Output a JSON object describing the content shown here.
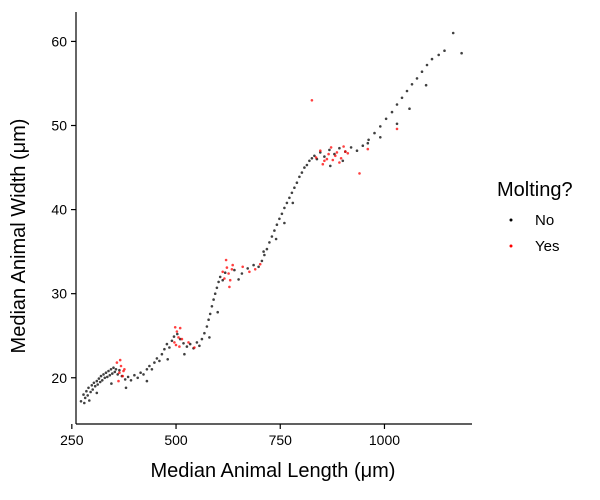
{
  "chart_data": {
    "type": "scatter",
    "xlabel": "Median Animal Length (μm)",
    "ylabel": "Median Animal Width (μm)",
    "xlim": [
      260,
      1210
    ],
    "ylim": [
      14.5,
      63.5
    ],
    "x_ticks": [
      250,
      500,
      750,
      1000
    ],
    "x_tick_labels": [
      "250",
      "500",
      "750",
      "1000"
    ],
    "y_ticks": [
      20,
      30,
      40,
      50,
      60
    ],
    "y_tick_labels": [
      "20",
      "30",
      "40",
      "50",
      "60"
    ],
    "grid": false,
    "legend": {
      "title": "Molting?",
      "placement": "right",
      "entries": [
        {
          "label": "No",
          "color": "#000000"
        },
        {
          "label": "Yes",
          "color": "#ff0000"
        }
      ]
    },
    "series": [
      {
        "name": "No",
        "color": "#000000",
        "points": [
          [
            272,
            17.2
          ],
          [
            278,
            18.0
          ],
          [
            282,
            17.6
          ],
          [
            285,
            18.4
          ],
          [
            288,
            17.9
          ],
          [
            290,
            18.8
          ],
          [
            295,
            18.3
          ],
          [
            298,
            19.1
          ],
          [
            300,
            18.6
          ],
          [
            303,
            19.4
          ],
          [
            306,
            19.0
          ],
          [
            310,
            19.6
          ],
          [
            312,
            19.2
          ],
          [
            315,
            19.9
          ],
          [
            318,
            19.5
          ],
          [
            320,
            20.2
          ],
          [
            323,
            19.7
          ],
          [
            326,
            20.4
          ],
          [
            329,
            20.0
          ],
          [
            332,
            20.6
          ],
          [
            335,
            20.1
          ],
          [
            338,
            20.8
          ],
          [
            341,
            20.3
          ],
          [
            344,
            21.0
          ],
          [
            347,
            20.5
          ],
          [
            350,
            21.2
          ],
          [
            353,
            20.7
          ],
          [
            356,
            21.0
          ],
          [
            360,
            20.4
          ],
          [
            364,
            20.9
          ],
          [
            370,
            20.2
          ],
          [
            378,
            19.8
          ],
          [
            385,
            20.1
          ],
          [
            392,
            19.7
          ],
          [
            400,
            20.3
          ],
          [
            408,
            20.0
          ],
          [
            415,
            20.6
          ],
          [
            422,
            20.4
          ],
          [
            430,
            21.0
          ],
          [
            436,
            21.4
          ],
          [
            442,
            21.0
          ],
          [
            448,
            21.8
          ],
          [
            454,
            22.3
          ],
          [
            460,
            22.0
          ],
          [
            466,
            22.8
          ],
          [
            472,
            23.4
          ],
          [
            478,
            24.0
          ],
          [
            484,
            23.6
          ],
          [
            490,
            24.4
          ],
          [
            495,
            24.9
          ],
          [
            503,
            25.2
          ],
          [
            510,
            24.6
          ],
          [
            518,
            24.1
          ],
          [
            526,
            23.7
          ],
          [
            534,
            24.0
          ],
          [
            542,
            23.5
          ],
          [
            550,
            24.2
          ],
          [
            556,
            23.8
          ],
          [
            562,
            24.6
          ],
          [
            568,
            25.3
          ],
          [
            574,
            26.1
          ],
          [
            578,
            26.9
          ],
          [
            582,
            27.6
          ],
          [
            586,
            28.5
          ],
          [
            590,
            29.3
          ],
          [
            594,
            30.0
          ],
          [
            598,
            30.7
          ],
          [
            602,
            31.4
          ],
          [
            606,
            32.0
          ],
          [
            612,
            31.6
          ],
          [
            618,
            32.5
          ],
          [
            640,
            32.8
          ],
          [
            658,
            32.4
          ],
          [
            672,
            33.0
          ],
          [
            686,
            33.4
          ],
          [
            698,
            33.2
          ],
          [
            706,
            33.9
          ],
          [
            712,
            34.6
          ],
          [
            718,
            35.3
          ],
          [
            724,
            36.1
          ],
          [
            730,
            36.8
          ],
          [
            736,
            37.5
          ],
          [
            742,
            38.2
          ],
          [
            748,
            38.9
          ],
          [
            754,
            39.5
          ],
          [
            760,
            40.2
          ],
          [
            766,
            40.8
          ],
          [
            772,
            41.4
          ],
          [
            778,
            42.0
          ],
          [
            784,
            42.6
          ],
          [
            790,
            43.2
          ],
          [
            796,
            43.9
          ],
          [
            802,
            44.4
          ],
          [
            808,
            45.0
          ],
          [
            814,
            45.3
          ],
          [
            820,
            45.8
          ],
          [
            826,
            46.1
          ],
          [
            832,
            46.4
          ],
          [
            838,
            46.0
          ],
          [
            846,
            46.8
          ],
          [
            856,
            46.3
          ],
          [
            868,
            47.1
          ],
          [
            880,
            46.6
          ],
          [
            892,
            47.3
          ],
          [
            906,
            46.9
          ],
          [
            920,
            47.4
          ],
          [
            934,
            47.0
          ],
          [
            948,
            47.6
          ],
          [
            962,
            48.3
          ],
          [
            976,
            49.1
          ],
          [
            990,
            49.9
          ],
          [
            1004,
            50.8
          ],
          [
            1018,
            51.6
          ],
          [
            1030,
            52.5
          ],
          [
            1042,
            53.3
          ],
          [
            1054,
            54.1
          ],
          [
            1066,
            54.9
          ],
          [
            1078,
            55.6
          ],
          [
            1090,
            56.4
          ],
          [
            1102,
            57.2
          ],
          [
            1114,
            57.9
          ],
          [
            1130,
            58.4
          ],
          [
            1144,
            58.9
          ],
          [
            1165,
            61.0
          ],
          [
            1185,
            58.6
          ],
          [
            1100,
            54.8
          ],
          [
            1060,
            52.0
          ],
          [
            1030,
            50.2
          ],
          [
            990,
            48.6
          ],
          [
            960,
            47.9
          ],
          [
            900,
            45.8
          ],
          [
            870,
            45.2
          ],
          [
            780,
            40.8
          ],
          [
            760,
            38.4
          ],
          [
            740,
            36.5
          ],
          [
            710,
            35.0
          ],
          [
            650,
            31.7
          ],
          [
            600,
            27.8
          ],
          [
            580,
            24.8
          ],
          [
            520,
            22.8
          ],
          [
            480,
            22.2
          ],
          [
            430,
            19.6
          ],
          [
            380,
            18.8
          ],
          [
            345,
            19.3
          ],
          [
            310,
            18.2
          ],
          [
            292,
            17.3
          ],
          [
            280,
            17.0
          ]
        ]
      },
      {
        "name": "Yes",
        "color": "#ff0000",
        "points": [
          [
            358,
            21.8
          ],
          [
            364,
            20.6
          ],
          [
            368,
            21.4
          ],
          [
            372,
            20.2
          ],
          [
            376,
            21.0
          ],
          [
            362,
            19.6
          ],
          [
            366,
            22.1
          ],
          [
            374,
            20.8
          ],
          [
            496,
            24.2
          ],
          [
            502,
            25.5
          ],
          [
            506,
            24.8
          ],
          [
            510,
            25.9
          ],
          [
            500,
            23.9
          ],
          [
            514,
            24.6
          ],
          [
            498,
            26.0
          ],
          [
            508,
            23.7
          ],
          [
            530,
            24.2
          ],
          [
            544,
            23.6
          ],
          [
            616,
            31.8
          ],
          [
            622,
            33.1
          ],
          [
            626,
            32.4
          ],
          [
            630,
            31.6
          ],
          [
            634,
            32.9
          ],
          [
            620,
            34.0
          ],
          [
            628,
            30.8
          ],
          [
            636,
            33.4
          ],
          [
            612,
            32.6
          ],
          [
            660,
            33.2
          ],
          [
            676,
            32.6
          ],
          [
            690,
            32.9
          ],
          [
            702,
            33.5
          ],
          [
            836,
            46.2
          ],
          [
            846,
            47.0
          ],
          [
            856,
            45.8
          ],
          [
            866,
            46.6
          ],
          [
            876,
            45.9
          ],
          [
            886,
            46.8
          ],
          [
            896,
            46.1
          ],
          [
            906,
            46.9
          ],
          [
            852,
            45.4
          ],
          [
            872,
            47.4
          ],
          [
            892,
            45.6
          ],
          [
            902,
            47.5
          ],
          [
            862,
            46.0
          ],
          [
            882,
            46.4
          ],
          [
            912,
            46.7
          ],
          [
            826,
            53.0
          ],
          [
            940,
            44.3
          ],
          [
            960,
            47.2
          ],
          [
            1030,
            49.6
          ]
        ]
      }
    ]
  }
}
